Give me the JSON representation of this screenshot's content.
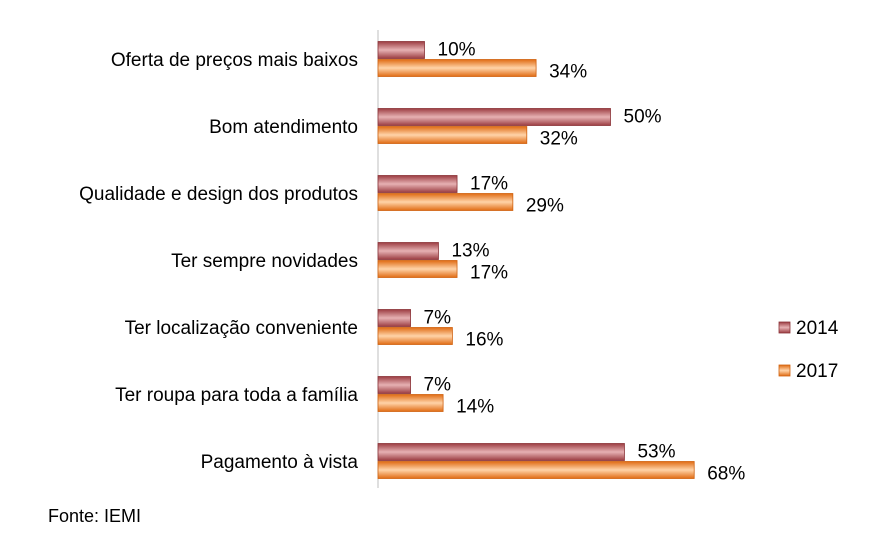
{
  "chart_data": {
    "type": "bar",
    "orientation": "horizontal",
    "categories": [
      "Oferta de preços mais baixos",
      "Bom atendimento",
      "Qualidade e design dos produtos",
      "Ter sempre novidades",
      "Ter localização conveniente",
      "Ter roupa para toda a família",
      "Pagamento à vista"
    ],
    "series": [
      {
        "name": "2014",
        "values": [
          10,
          50,
          17,
          13,
          7,
          7,
          53
        ],
        "labels": [
          "10%",
          "50%",
          "17%",
          "13%",
          "7%",
          "7%",
          "53%"
        ],
        "color_dark": "#a8464a",
        "color_light": "#e8b3b5"
      },
      {
        "name": "2017",
        "values": [
          34,
          32,
          29,
          17,
          16,
          14,
          68
        ],
        "labels": [
          "34%",
          "32%",
          "29%",
          "17%",
          "16%",
          "14%",
          "68%"
        ],
        "color_dark": "#e0701a",
        "color_light": "#ffd1a3"
      }
    ],
    "unit": "%",
    "legend_position": "right",
    "grid": false,
    "source": "Fonte: IEMI"
  }
}
